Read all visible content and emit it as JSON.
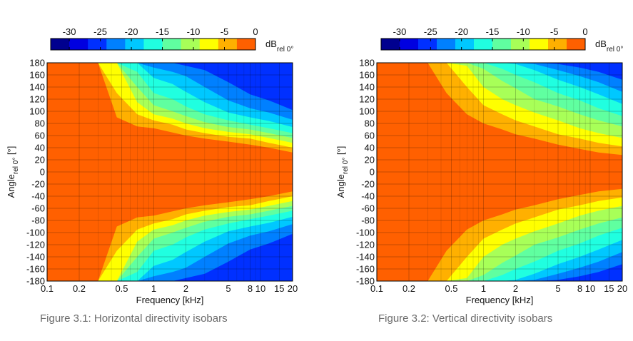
{
  "chart_data": [
    {
      "type": "heatmap",
      "caption": "Figure 3.1: Horizontal directivity isobars",
      "xlabel": "Frequency [kHz]",
      "ylabel": "Angle",
      "ylabel_sub": "rel 0°",
      "ylabel_unit": " [°]",
      "x_scale": "log",
      "xlim": [
        0.1,
        20
      ],
      "ylim": [
        -180,
        180
      ],
      "x_ticks": [
        0.1,
        0.2,
        0.5,
        1,
        2,
        5,
        8,
        10,
        15,
        20
      ],
      "x_tick_labels": [
        "0.1",
        "0.2",
        "0.5",
        "1",
        "2",
        "5",
        "8",
        "10",
        "15",
        "20"
      ],
      "y_ticks": [
        180,
        160,
        140,
        120,
        100,
        80,
        60,
        40,
        20,
        0,
        -20,
        -40,
        -60,
        -80,
        -100,
        -120,
        -140,
        -160,
        -180
      ],
      "y_tick_labels": [
        "180",
        "160",
        "140",
        "120",
        "100",
        "80",
        "60",
        "40",
        "20",
        "0",
        "-20",
        "-40",
        "-60",
        "-80",
        "-100",
        "-120",
        "-140",
        "-160",
        "-180"
      ],
      "grid": true,
      "contours": {
        "levels_db": [
          -3,
          -6,
          -9,
          -12,
          -15,
          -18,
          -21,
          -24
        ],
        "frequencies_khz": [
          0.1,
          0.2,
          0.3,
          0.45,
          0.7,
          1,
          1.5,
          2,
          3,
          5,
          8,
          12,
          20
        ],
        "angle_deg_at_level": [
          [
            180,
            180,
            180,
            90,
            75,
            72,
            65,
            60,
            55,
            50,
            45,
            40,
            32
          ],
          [
            180,
            180,
            180,
            130,
            95,
            85,
            78,
            70,
            64,
            58,
            55,
            48,
            40
          ],
          [
            180,
            180,
            180,
            180,
            115,
            95,
            88,
            80,
            72,
            66,
            62,
            56,
            48
          ],
          [
            180,
            180,
            180,
            180,
            140,
            110,
            100,
            92,
            82,
            74,
            70,
            64,
            56
          ],
          [
            180,
            180,
            180,
            180,
            165,
            130,
            120,
            108,
            95,
            85,
            78,
            72,
            64
          ],
          [
            180,
            180,
            180,
            180,
            180,
            155,
            145,
            132,
            115,
            98,
            90,
            84,
            74
          ],
          [
            180,
            180,
            180,
            180,
            180,
            172,
            165,
            158,
            140,
            118,
            105,
            98,
            86
          ],
          [
            180,
            180,
            180,
            180,
            180,
            180,
            180,
            175,
            168,
            148,
            128,
            118,
            102
          ]
        ]
      }
    },
    {
      "type": "heatmap",
      "caption": "Figure 3.2: Vertical directivity isobars",
      "xlabel": "Frequency [kHz]",
      "ylabel": "Angle",
      "ylabel_sub": "rel 0°",
      "ylabel_unit": " [°]",
      "x_scale": "log",
      "xlim": [
        0.1,
        20
      ],
      "ylim": [
        -180,
        180
      ],
      "x_ticks": [
        0.1,
        0.2,
        0.5,
        1,
        2,
        5,
        8,
        10,
        15,
        20
      ],
      "x_tick_labels": [
        "0.1",
        "0.2",
        "0.5",
        "1",
        "2",
        "5",
        "8",
        "10",
        "15",
        "20"
      ],
      "y_ticks": [
        180,
        160,
        140,
        120,
        100,
        80,
        60,
        40,
        20,
        0,
        -20,
        -40,
        -60,
        -80,
        -100,
        -120,
        -140,
        -160,
        -180
      ],
      "y_tick_labels": [
        "180",
        "160",
        "140",
        "120",
        "100",
        "80",
        "60",
        "40",
        "20",
        "0",
        "-20",
        "-40",
        "-60",
        "-80",
        "-100",
        "-120",
        "-140",
        "-160",
        "-180"
      ],
      "grid": true,
      "contours": {
        "levels_db": [
          -3,
          -6,
          -9,
          -12,
          -15,
          -18,
          -21,
          -24
        ],
        "frequencies_khz": [
          0.1,
          0.2,
          0.3,
          0.45,
          0.7,
          1,
          1.5,
          2,
          3,
          5,
          8,
          12,
          20
        ],
        "angle_deg_at_level": [
          [
            180,
            180,
            180,
            130,
            95,
            80,
            70,
            62,
            55,
            45,
            38,
            32,
            28
          ],
          [
            180,
            180,
            180,
            180,
            140,
            110,
            95,
            85,
            75,
            62,
            55,
            48,
            42
          ],
          [
            180,
            180,
            180,
            180,
            175,
            140,
            120,
            110,
            98,
            85,
            72,
            64,
            56
          ],
          [
            180,
            180,
            180,
            180,
            180,
            170,
            150,
            138,
            120,
            108,
            95,
            85,
            75
          ],
          [
            180,
            180,
            180,
            180,
            180,
            180,
            170,
            160,
            148,
            130,
            118,
            105,
            92
          ],
          [
            180,
            180,
            180,
            180,
            180,
            180,
            180,
            178,
            168,
            152,
            140,
            128,
            112
          ],
          [
            180,
            180,
            180,
            180,
            180,
            180,
            180,
            180,
            178,
            168,
            158,
            148,
            132
          ],
          [
            180,
            180,
            180,
            180,
            180,
            180,
            180,
            180,
            180,
            178,
            172,
            165,
            152
          ]
        ]
      }
    }
  ],
  "colorbar": {
    "tick_values": [
      -30,
      -25,
      -20,
      -15,
      -10,
      -5,
      0
    ],
    "tick_labels": [
      "-30",
      "-25",
      "-20",
      "-15",
      "-10",
      "-5",
      "0"
    ],
    "range_db": [
      -33,
      0
    ],
    "unit": "dB",
    "unit_sub": "rel 0°",
    "bands": [
      {
        "from": -33,
        "to": -30,
        "color": "#00008f"
      },
      {
        "from": -30,
        "to": -27,
        "color": "#0000e0"
      },
      {
        "from": -27,
        "to": -24,
        "color": "#0030ff"
      },
      {
        "from": -24,
        "to": -21,
        "color": "#0080ff"
      },
      {
        "from": -21,
        "to": -18,
        "color": "#00c8ff"
      },
      {
        "from": -18,
        "to": -15,
        "color": "#20ffe0"
      },
      {
        "from": -15,
        "to": -12,
        "color": "#60ffa0"
      },
      {
        "from": -12,
        "to": -9,
        "color": "#a8ff58"
      },
      {
        "from": -9,
        "to": -6,
        "color": "#ffff00"
      },
      {
        "from": -6,
        "to": -3,
        "color": "#ffb000"
      },
      {
        "from": -3,
        "to": 0,
        "color": "#ff6000"
      }
    ]
  }
}
